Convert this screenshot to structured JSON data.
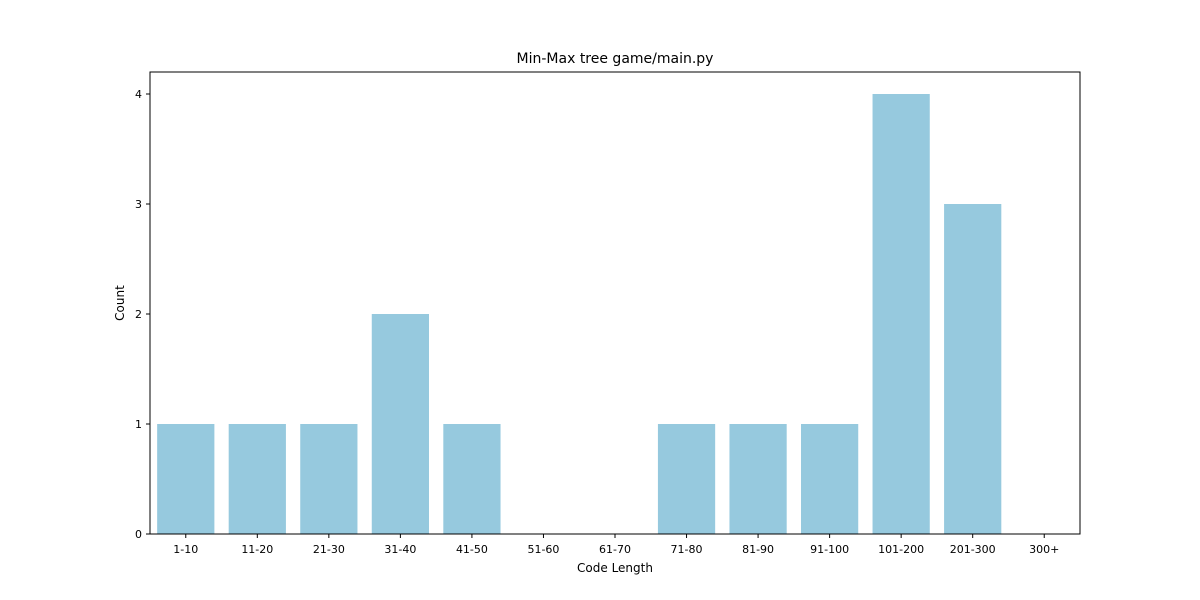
{
  "chart_data": {
    "type": "bar",
    "title": "Min-Max tree game/main.py",
    "xlabel": "Code Length",
    "ylabel": "Count",
    "categories": [
      "1-10",
      "11-20",
      "21-30",
      "31-40",
      "41-50",
      "51-60",
      "61-70",
      "71-80",
      "81-90",
      "91-100",
      "101-200",
      "201-300",
      "300+"
    ],
    "values": [
      1,
      1,
      1,
      2,
      1,
      0,
      0,
      1,
      1,
      1,
      4,
      3,
      0
    ],
    "ylim": [
      0,
      4.2
    ],
    "yticks": [
      0,
      1,
      2,
      3,
      4
    ],
    "grid": false,
    "legend": "none",
    "bar_color": "#96c9de"
  }
}
